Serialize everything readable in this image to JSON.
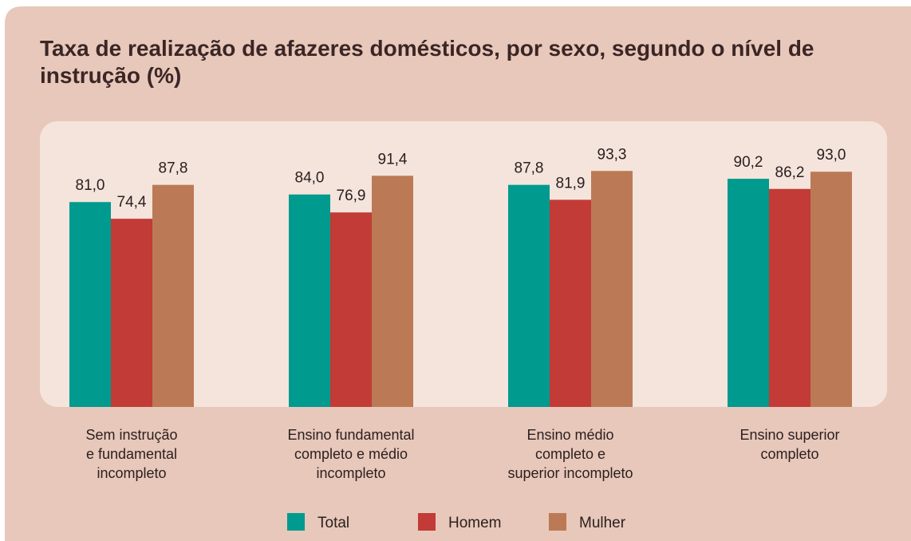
{
  "chart_data": {
    "type": "bar",
    "title": "Taxa de realização de afazeres domésticos, por sexo, segundo o nível de instrução (%)",
    "categories": [
      [
        "Sem instrução",
        "e fundamental",
        "incompleto"
      ],
      [
        "Ensino fundamental",
        "completo e médio",
        "incompleto"
      ],
      [
        "Ensino médio",
        "completo e",
        "superior incompleto"
      ],
      [
        "Ensino superior",
        "completo"
      ]
    ],
    "series": [
      {
        "name": "Total",
        "color": "#009a8e",
        "values": [
          81.0,
          84.0,
          87.8,
          90.2
        ],
        "value_labels": [
          "81,0",
          "84,0",
          "87,8",
          "90,2"
        ]
      },
      {
        "name": "Homem",
        "color": "#c23b36",
        "values": [
          74.4,
          76.9,
          81.9,
          86.2
        ],
        "value_labels": [
          "74,4",
          "76,9",
          "81,9",
          "86,2"
        ]
      },
      {
        "name": "Mulher",
        "color": "#bb7a55",
        "values": [
          87.8,
          91.4,
          93.3,
          93.0
        ],
        "value_labels": [
          "87,8",
          "91,4",
          "93,3",
          "93,0"
        ]
      }
    ],
    "ylim": [
      0,
      100
    ]
  }
}
